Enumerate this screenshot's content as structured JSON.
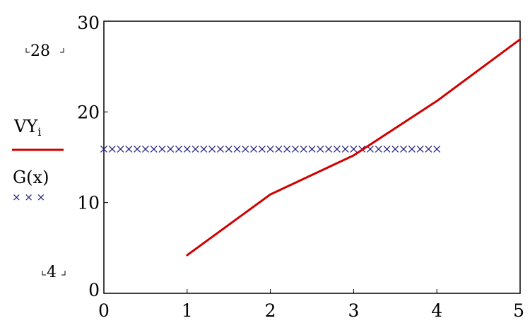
{
  "chart_data": {
    "type": "line",
    "x_ticks": [
      "0",
      "1",
      "2",
      "3",
      "4",
      "5"
    ],
    "y_ticks": [
      "0",
      "10",
      "20",
      "30"
    ],
    "xlim": [
      0,
      5
    ],
    "ylim": [
      0,
      30
    ],
    "y_markers": {
      "upper": "28",
      "lower": "4"
    },
    "grid": false,
    "series": [
      {
        "label": "VY",
        "label_sub": "i",
        "style": "solid",
        "color": "#d00000",
        "x": [
          1,
          2,
          3,
          4,
          5
        ],
        "y": [
          4.2,
          10.9,
          15.2,
          21.2,
          28
        ]
      },
      {
        "label": "G(x)",
        "style": "x-markers",
        "marker_legend": "× × ×",
        "color": "#1a1a80",
        "x_range": [
          0,
          4
        ],
        "x_step": 0.1,
        "y": 15.9
      }
    ]
  }
}
